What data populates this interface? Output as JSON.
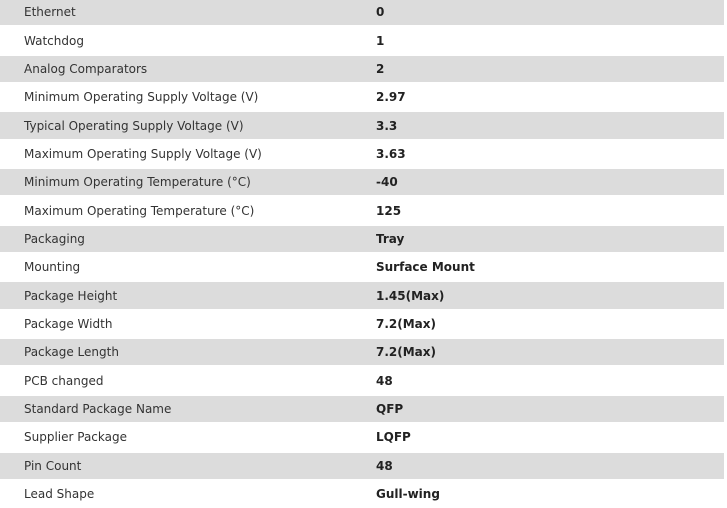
{
  "rows": [
    {
      "label": "Ethernet",
      "value": "0"
    },
    {
      "label": "Watchdog",
      "value": "1"
    },
    {
      "label": "Analog Comparators",
      "value": "2"
    },
    {
      "label": "Minimum Operating Supply Voltage (V)",
      "value": "2.97"
    },
    {
      "label": "Typical Operating Supply Voltage (V)",
      "value": "3.3"
    },
    {
      "label": "Maximum Operating Supply Voltage (V)",
      "value": "3.63"
    },
    {
      "label": "Minimum Operating Temperature (°C)",
      "value": "-40"
    },
    {
      "label": "Maximum Operating Temperature (°C)",
      "value": "125"
    },
    {
      "label": "Packaging",
      "value": "Tray"
    },
    {
      "label": "Mounting",
      "value": "Surface Mount"
    },
    {
      "label": "Package Height",
      "value": "1.45(Max)"
    },
    {
      "label": "Package Width",
      "value": "7.2(Max)"
    },
    {
      "label": "Package Length",
      "value": "7.2(Max)"
    },
    {
      "label": "PCB changed",
      "value": "48"
    },
    {
      "label": "Standard Package Name",
      "value": "QFP"
    },
    {
      "label": "Supplier Package",
      "value": "LQFP"
    },
    {
      "label": "Pin Count",
      "value": "48"
    },
    {
      "label": "Lead Shape",
      "value": "Gull-wing"
    }
  ],
  "colors": {
    "stripe": "#dcdcdc",
    "text": "#333333"
  }
}
